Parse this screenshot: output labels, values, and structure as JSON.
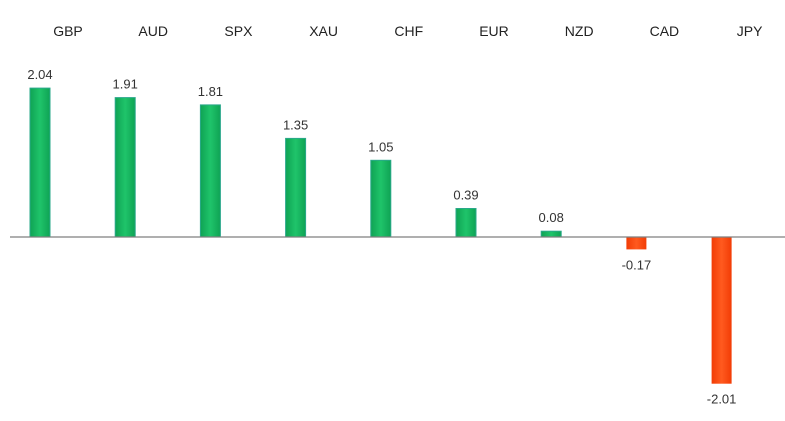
{
  "chart_data": {
    "type": "bar",
    "categories": [
      "GBP",
      "AUD",
      "SPX",
      "XAU",
      "CHF",
      "EUR",
      "NZD",
      "CAD",
      "JPY"
    ],
    "values": [
      2.04,
      1.91,
      1.81,
      1.35,
      1.05,
      0.39,
      0.08,
      -0.17,
      -2.01
    ],
    "value_labels": [
      "2.04",
      "1.91",
      "1.81",
      "1.35",
      "1.05",
      "0.39",
      "0.08",
      "-0.17",
      "-2.01"
    ],
    "title": "",
    "xlabel": "",
    "ylabel": "",
    "ylim": [
      -2.01,
      2.04
    ],
    "category_labels_position": "top",
    "grid": false,
    "legend": "none",
    "colors": {
      "positive": "#14b35c",
      "positive_edge": "#2aa88a",
      "negative": "#ff4a0f",
      "baseline": "#7f7f7f"
    }
  }
}
